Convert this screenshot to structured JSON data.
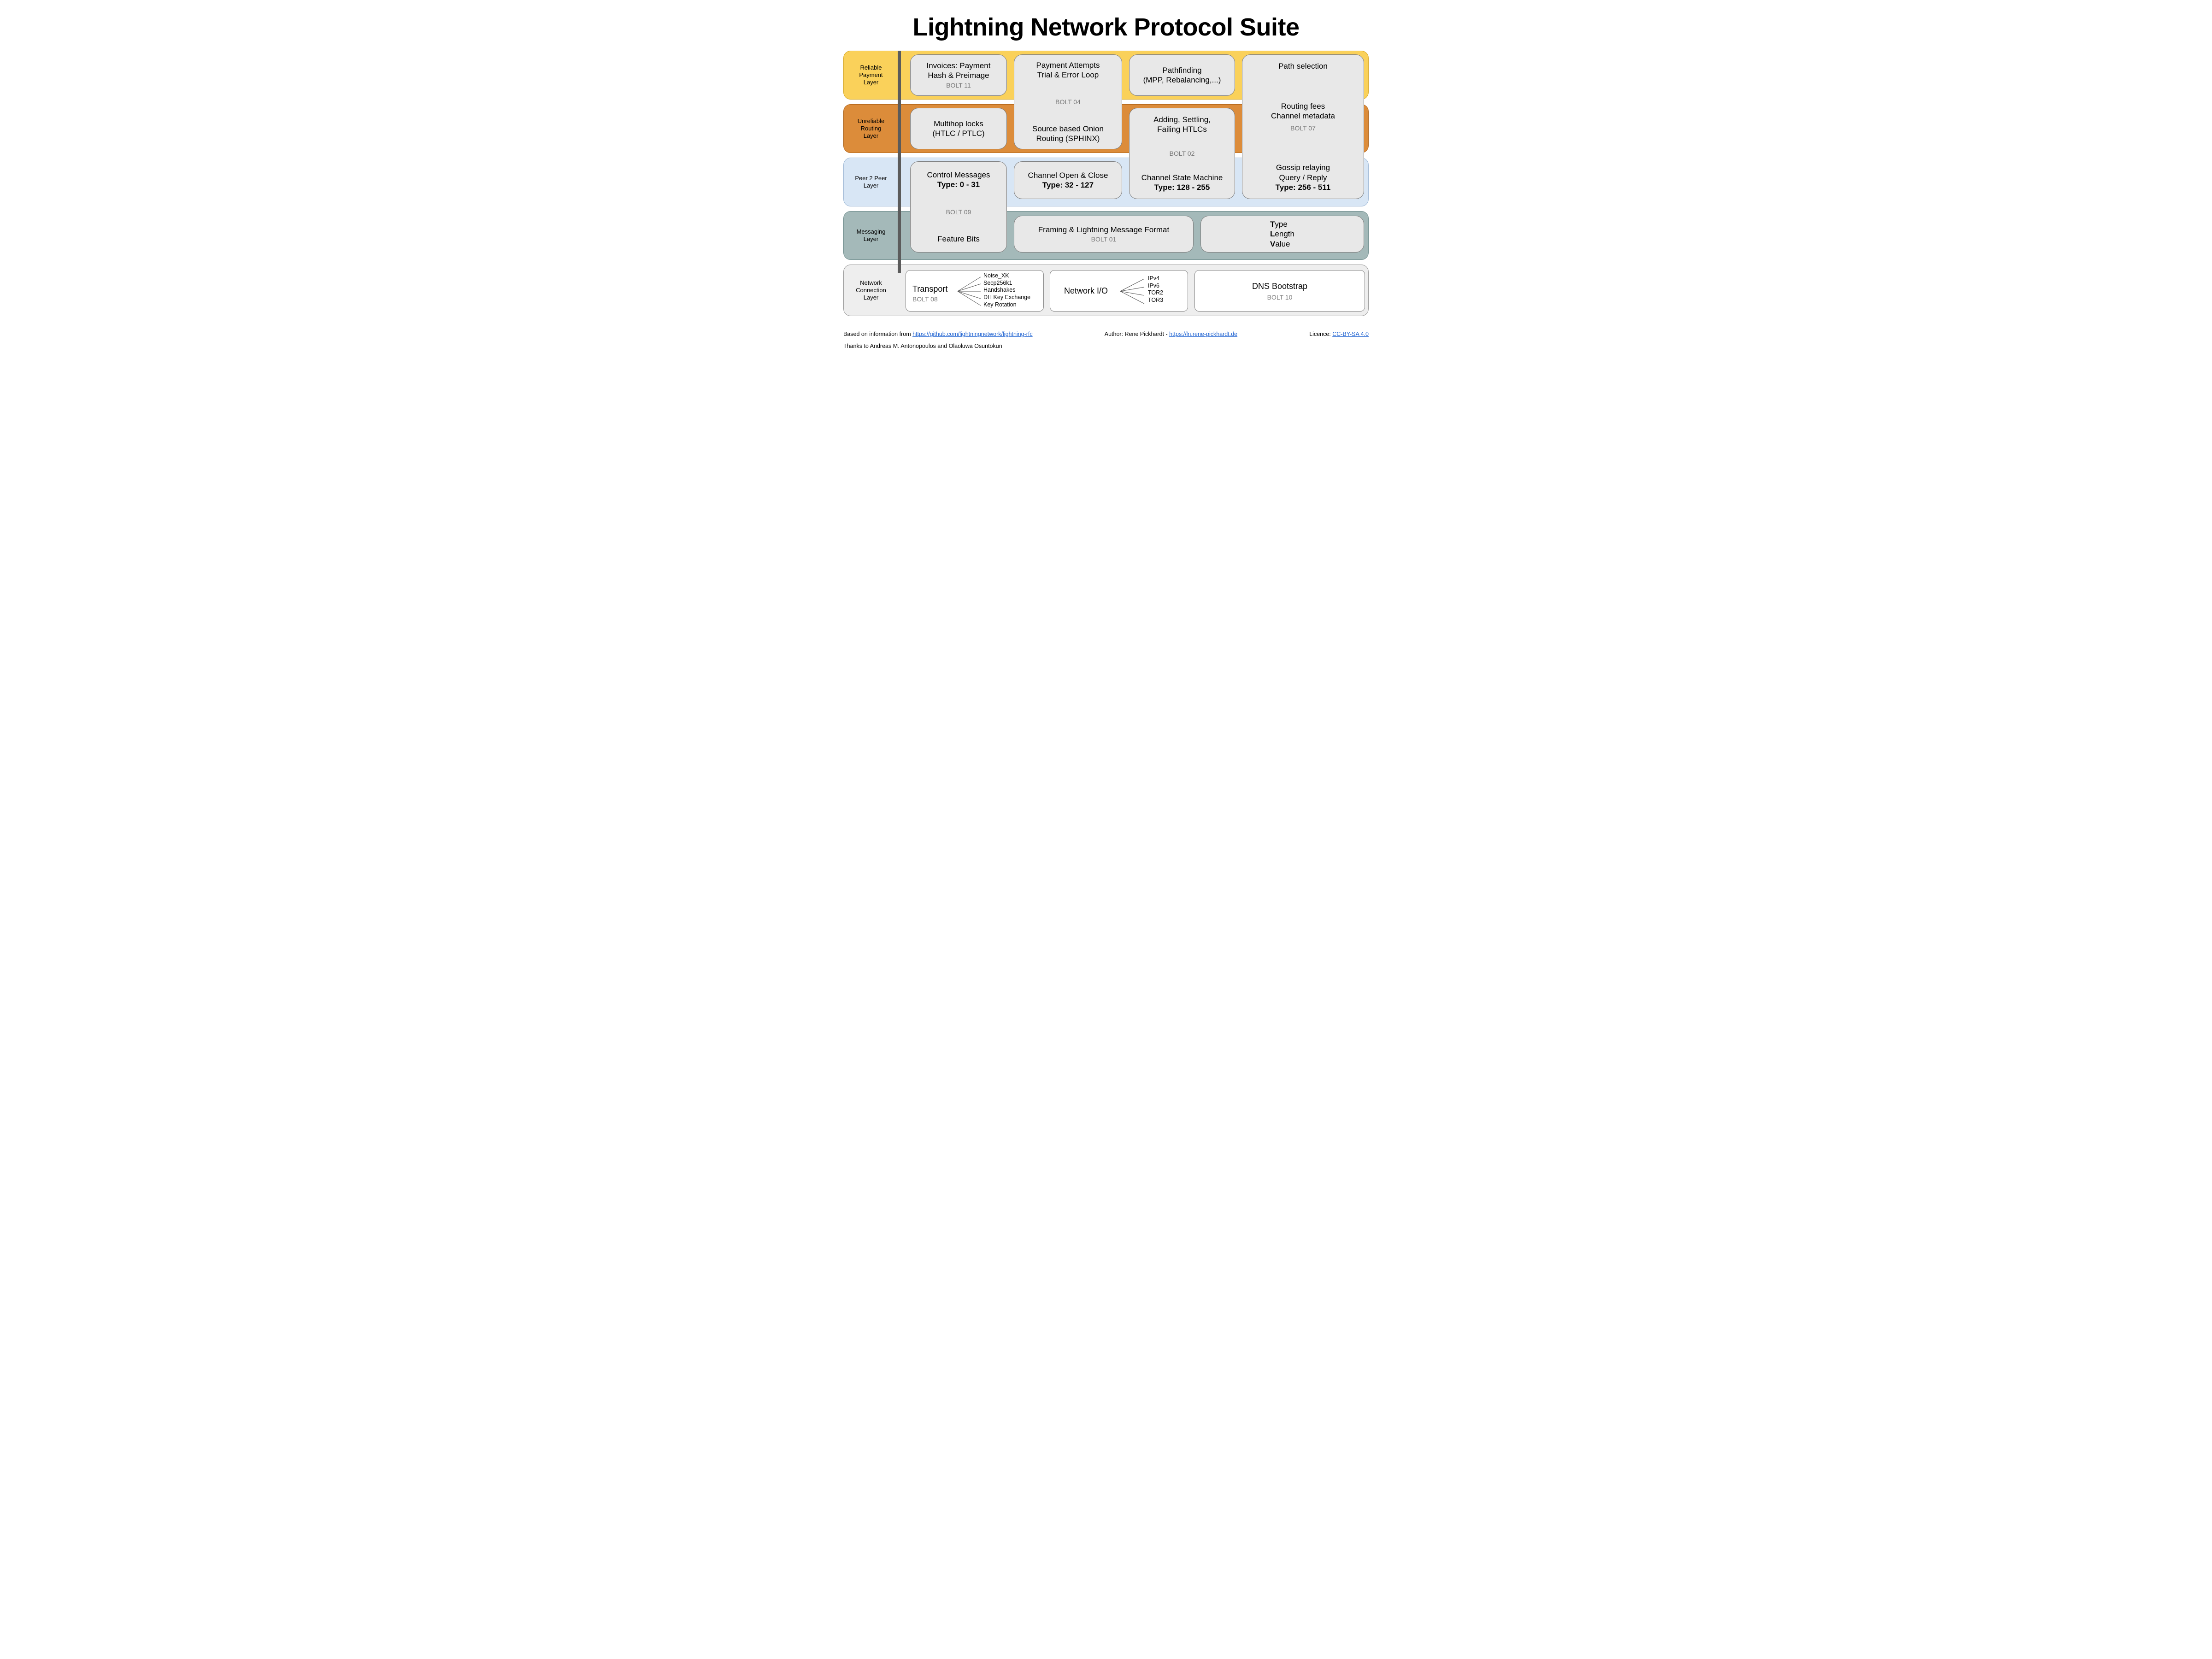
{
  "title": "Lightning Network Protocol Suite",
  "layers": {
    "payment": {
      "label": "Reliable\nPayment\nLayer",
      "bg": "#fad15a",
      "border": "#d8a926"
    },
    "routing": {
      "label": "Unreliable\nRouting\nLayer",
      "bg": "#dc8c3a",
      "border": "#b06317"
    },
    "p2p": {
      "label": "Peer 2 Peer\nLayer",
      "bg": "#d8e6f5",
      "border": "#9fb9d6"
    },
    "messaging": {
      "label": "Messaging\nLayer",
      "bg": "#a4b9b9",
      "border": "#6e8c8c"
    },
    "network": {
      "label": "Network\nConnection\nLayer",
      "bg": "#eeeeee",
      "border": "#9a9a9a"
    }
  },
  "boxes": {
    "invoices": {
      "l1": "Invoices: Payment",
      "l2": "Hash & Preimage",
      "bolt": "BOLT 11"
    },
    "multihop": {
      "l1": "Multihop locks",
      "l2": "(HTLC / PTLC)"
    },
    "attempts_onion": {
      "top1": "Payment Attempts",
      "top2": "Trial & Error Loop",
      "bolt": "BOLT 04",
      "bot1": "Source based Onion",
      "bot2": "Routing (SPHINX)"
    },
    "pathfinding": {
      "l1": "Pathfinding",
      "l2": "(MPP, Rebalancing,...)"
    },
    "htlc_state": {
      "top1": "Adding, Settling,",
      "top2": "Failing HTLCs",
      "bolt": "BOLT 02",
      "bot1": "Channel State Machine",
      "type": "Type: 128 - 255"
    },
    "gossip": {
      "top": "Path selection",
      "mid1": "Routing fees",
      "mid2": "Channel metadata",
      "bolt": "BOLT 07",
      "bot1": "Gossip relaying",
      "bot2": "Query / Reply",
      "type": "Type: 256 - 511"
    },
    "control_feature": {
      "top1": "Control Messages",
      "type": "Type: 0 - 31",
      "bolt": "BOLT 09",
      "bot": "Feature Bits"
    },
    "channel_open": {
      "l1": "Channel Open & Close",
      "type": "Type: 32 - 127"
    },
    "framing": {
      "l1": "Framing & Lightning Message Format",
      "bolt": "BOLT 01"
    },
    "tlv": {
      "t": "T",
      "tr": "ype",
      "l": "L",
      "lr": "ength",
      "v": "V",
      "vr": "alue"
    },
    "transport": {
      "title": "Transport",
      "bolt": "BOLT 08",
      "items": [
        "Noise_XK",
        "Secp256k1",
        "Handshakes",
        "DH Key Exchange",
        "Key Rotation"
      ]
    },
    "netio": {
      "title": "Network I/O",
      "items": [
        "IPv4",
        "IPv6",
        "TOR2",
        "TOR3"
      ]
    },
    "dns": {
      "title": "DNS Bootstrap",
      "bolt": "BOLT 10"
    }
  },
  "footer": {
    "left_pre": "Based on information from ",
    "left_link": "https://github.com/lightningnetwork/lightning-rfc",
    "mid_pre": "Author: Rene Pickhardt - ",
    "mid_link": "https://ln.rene-pickhardt.de",
    "right_pre": "Licence: ",
    "right_link": "CC-BY-SA 4.0",
    "thanks": "Thanks to Andreas M. Antonopoulos and Olaoluwa Osuntokun"
  },
  "style": {
    "box_bg": "#e8e8e8",
    "box_border": "#7f7f7f",
    "link_color": "#1a5fd0",
    "vrule_color": "#5b5b5b"
  }
}
